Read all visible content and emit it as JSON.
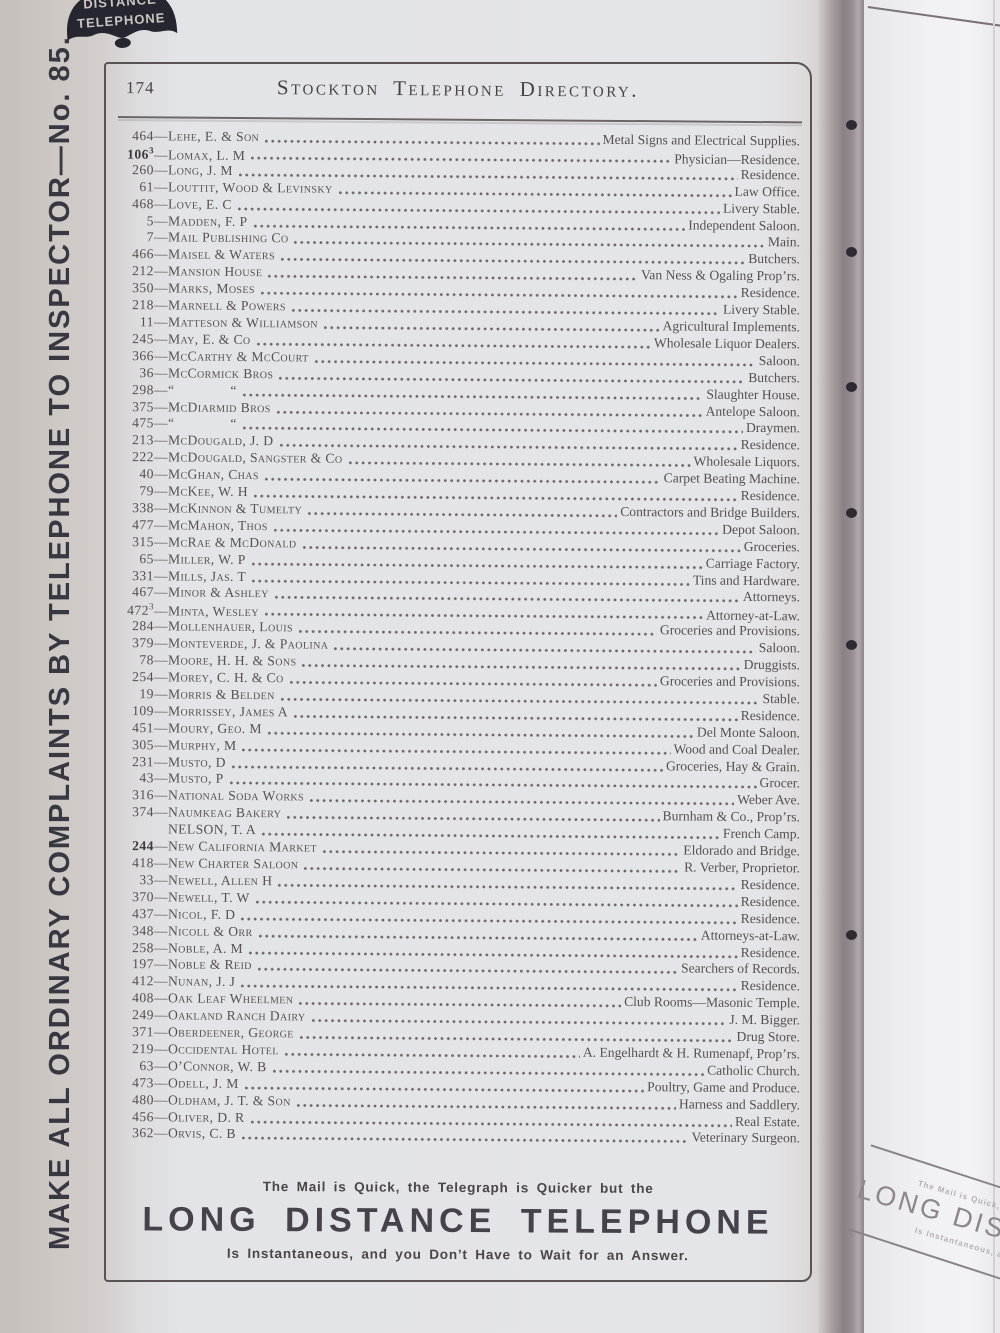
{
  "page": {
    "page_number": "174",
    "title": "Stockton Telephone Directory.",
    "sidebar_text": "MAKE ALL ORDINARY COMPLAINTS BY TELEPHONE TO INSPECTOR—No. 85.",
    "bell_logo": {
      "line1": "DISTANCE",
      "line2": "TELEPHONE"
    },
    "footer_ad": {
      "line1": "The Mail is Quick, the Telegraph is Quicker but the",
      "line2": "LONG DISTANCE TELEPHONE",
      "line3": "Is Instantaneous, and you Don’t Have to Wait for an Answer."
    },
    "next_page_ad": {
      "line1": "The Mail is Quick,",
      "line2": "LONG DISTA",
      "line3": "Is Instantaneous, and y"
    }
  },
  "directory": {
    "separator": "—",
    "entries": [
      {
        "num": "464",
        "sup": "",
        "bold": false,
        "name": "Lehe, E. & Son",
        "location": "Metal Signs and Electrical Supplies."
      },
      {
        "num": "106",
        "sup": "3",
        "bold": true,
        "name": "Lomax, L. M",
        "location": "Physician—Residence."
      },
      {
        "num": "260",
        "sup": "",
        "bold": false,
        "name": "Long, J. M",
        "location": "Residence."
      },
      {
        "num": "61",
        "sup": "",
        "bold": false,
        "name": "Louttit, Wood & Levinsky",
        "location": "Law Office."
      },
      {
        "num": "468",
        "sup": "",
        "bold": false,
        "name": "Love, E. C",
        "location": "Livery Stable."
      },
      {
        "num": "5",
        "sup": "",
        "bold": false,
        "name": "Madden, F. P",
        "location": "Independent Saloon."
      },
      {
        "num": "7",
        "sup": "",
        "bold": false,
        "name": "Mail Publishing Co",
        "location": "Main."
      },
      {
        "num": "466",
        "sup": "",
        "bold": false,
        "name": "Maisel & Waters",
        "location": "Butchers."
      },
      {
        "num": "212",
        "sup": "",
        "bold": false,
        "name": "Mansion House",
        "location": "Van Ness & Ogaling Prop’rs."
      },
      {
        "num": "350",
        "sup": "",
        "bold": false,
        "name": "Marks, Moses",
        "location": "Residence."
      },
      {
        "num": "218",
        "sup": "",
        "bold": false,
        "name": "Marnell & Powers",
        "location": "Livery Stable."
      },
      {
        "num": "11",
        "sup": "",
        "bold": false,
        "name": "Matteson & Williamson",
        "location": "Agricultural Implements."
      },
      {
        "num": "245",
        "sup": "",
        "bold": false,
        "name": "May, E. & Co",
        "location": "Wholesale Liquor Dealers."
      },
      {
        "num": "366",
        "sup": "",
        "bold": false,
        "name": "McCarthy & McCourt",
        "location": "Saloon."
      },
      {
        "num": "36",
        "sup": "",
        "bold": false,
        "name": "McCormick Bros",
        "location": "Butchers."
      },
      {
        "num": "298",
        "sup": "",
        "bold": false,
        "name": "“    “",
        "location": "Slaughter House."
      },
      {
        "num": "375",
        "sup": "",
        "bold": false,
        "name": "McDiarmid Bros",
        "location": "Antelope Saloon."
      },
      {
        "num": "475",
        "sup": "",
        "bold": false,
        "name": "“    “",
        "location": "Draymen."
      },
      {
        "num": "213",
        "sup": "",
        "bold": false,
        "name": "McDougald, J. D",
        "location": "Residence."
      },
      {
        "num": "222",
        "sup": "",
        "bold": false,
        "name": "McDougald, Sangster & Co",
        "location": "Wholesale Liquors."
      },
      {
        "num": "40",
        "sup": "",
        "bold": false,
        "name": "McGhan, Chas",
        "location": "Carpet Beating Machine."
      },
      {
        "num": "79",
        "sup": "",
        "bold": false,
        "name": "McKee, W. H",
        "location": "Residence."
      },
      {
        "num": "338",
        "sup": "",
        "bold": false,
        "name": "McKinnon & Tumelty",
        "location": "Contractors and Bridge Builders."
      },
      {
        "num": "477",
        "sup": "",
        "bold": false,
        "name": "McMahon, Thos",
        "location": "Depot Saloon."
      },
      {
        "num": "315",
        "sup": "",
        "bold": false,
        "name": "McRae & McDonald",
        "location": "Groceries."
      },
      {
        "num": "65",
        "sup": "",
        "bold": false,
        "name": "Miller, W. P",
        "location": "Carriage Factory."
      },
      {
        "num": "331",
        "sup": "",
        "bold": false,
        "name": "Mills, Jas. T",
        "location": "Tins and Hardware."
      },
      {
        "num": "467",
        "sup": "",
        "bold": false,
        "name": "Minor & Ashley",
        "location": "Attorneys."
      },
      {
        "num": "472",
        "sup": "3",
        "bold": false,
        "name": "Minta, Wesley",
        "location": "Attorney-at-Law."
      },
      {
        "num": "284",
        "sup": "",
        "bold": false,
        "name": "Mollenhauer, Louis",
        "location": "Groceries and Provisions."
      },
      {
        "num": "379",
        "sup": "",
        "bold": false,
        "name": "Monteverde, J. & Paolina",
        "location": "Saloon."
      },
      {
        "num": "78",
        "sup": "",
        "bold": false,
        "name": "Moore, H. H. & Sons",
        "location": "Druggists."
      },
      {
        "num": "254",
        "sup": "",
        "bold": false,
        "name": "Morey, C. H. & Co",
        "location": "Groceries and Provisions."
      },
      {
        "num": "19",
        "sup": "",
        "bold": false,
        "name": "Morris & Belden",
        "location": "Stable."
      },
      {
        "num": "109",
        "sup": "",
        "bold": false,
        "name": "Morrissey, James A",
        "location": "Residence."
      },
      {
        "num": "451",
        "sup": "",
        "bold": false,
        "name": "Moury, Geo. M",
        "location": "Del Monte Saloon."
      },
      {
        "num": "305",
        "sup": "",
        "bold": false,
        "name": "Murphy, M",
        "location": "Wood and Coal Dealer."
      },
      {
        "num": "231",
        "sup": "",
        "bold": false,
        "name": "Musto, D",
        "location": "Groceries, Hay & Grain."
      },
      {
        "num": "43",
        "sup": "",
        "bold": false,
        "name": "Musto, P",
        "location": "Grocer."
      },
      {
        "num": "316",
        "sup": "",
        "bold": false,
        "name": "National Soda Works",
        "location": "Weber Ave."
      },
      {
        "num": "374",
        "sup": "",
        "bold": false,
        "name": "Naumkeag Bakery",
        "location": "Burnham & Co., Prop’rs."
      },
      {
        "num": "",
        "sup": "",
        "bold": false,
        "name": "NELSON, T. A",
        "location": "French Camp."
      },
      {
        "num": "244",
        "sup": "",
        "bold": true,
        "name": "New California Market",
        "location": "Eldorado and Bridge."
      },
      {
        "num": "418",
        "sup": "",
        "bold": false,
        "name": "New Charter Saloon",
        "location": "R. Verber, Proprietor."
      },
      {
        "num": "33",
        "sup": "",
        "bold": false,
        "name": "Newell, Allen H",
        "location": "Residence."
      },
      {
        "num": "370",
        "sup": "",
        "bold": false,
        "name": "Newell, T. W",
        "location": "Residence."
      },
      {
        "num": "437",
        "sup": "",
        "bold": false,
        "name": "Nicol, F. D",
        "location": "Residence."
      },
      {
        "num": "348",
        "sup": "",
        "bold": false,
        "name": "Nicoll & Orr",
        "location": "Attorneys-at-Law."
      },
      {
        "num": "258",
        "sup": "",
        "bold": false,
        "name": "Noble, A. M",
        "location": "Residence."
      },
      {
        "num": "197",
        "sup": "",
        "bold": false,
        "name": "Noble & Reid",
        "location": "Searchers of Records."
      },
      {
        "num": "412",
        "sup": "",
        "bold": false,
        "name": "Nunan, J. J",
        "location": "Residence."
      },
      {
        "num": "408",
        "sup": "",
        "bold": false,
        "name": "Oak Leaf Wheelmen",
        "location": "Club Rooms—Masonic Temple."
      },
      {
        "num": "249",
        "sup": "",
        "bold": false,
        "name": "Oakland Ranch Dairy",
        "location": "J. M. Bigger."
      },
      {
        "num": "371",
        "sup": "",
        "bold": false,
        "name": "Oberdeener, George",
        "location": "Drug Store."
      },
      {
        "num": "219",
        "sup": "",
        "bold": false,
        "name": "Occidental Hotel",
        "location": "A. Engelhardt & H. Rumenapf, Prop’rs."
      },
      {
        "num": "63",
        "sup": "",
        "bold": false,
        "name": "O’Connor, W. B",
        "location": "Catholic Church."
      },
      {
        "num": "473",
        "sup": "",
        "bold": false,
        "name": "Odell, J. M",
        "location": "Poultry, Game and Produce."
      },
      {
        "num": "480",
        "sup": "",
        "bold": false,
        "name": "Oldham, J. T. & Son",
        "location": "Harness and Saddlery."
      },
      {
        "num": "456",
        "sup": "",
        "bold": false,
        "name": "Oliver, D. R",
        "location": "Real Estate."
      },
      {
        "num": "362",
        "sup": "",
        "bold": false,
        "name": "Orvis, C. B",
        "location": "Veterinary Surgeon."
      }
    ]
  }
}
